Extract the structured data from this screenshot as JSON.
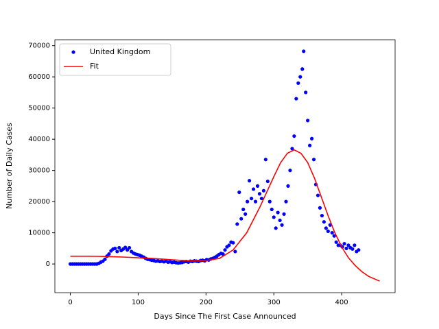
{
  "chart_data": {
    "type": "scatter-line",
    "xlabel": "Days Since The First Case Announced",
    "ylabel": "Number of Daily Cases",
    "xlim": [
      -22.8,
      478.8
    ],
    "ylim": [
      -9200,
      71900
    ],
    "xticks": [
      0,
      100,
      200,
      300,
      400
    ],
    "yticks": [
      0,
      10000,
      20000,
      30000,
      40000,
      50000,
      60000,
      70000
    ],
    "grid": false,
    "legend": "upper left",
    "series": [
      {
        "name": "United Kingdom",
        "kind": "scatter",
        "color": "#0000ff",
        "x": [
          0,
          3,
          6,
          9,
          12,
          15,
          18,
          21,
          24,
          27,
          30,
          33,
          36,
          39,
          42,
          45,
          48,
          51,
          54,
          57,
          60,
          63,
          66,
          69,
          72,
          75,
          78,
          81,
          84,
          87,
          90,
          93,
          96,
          99,
          102,
          105,
          108,
          111,
          114,
          117,
          120,
          123,
          126,
          129,
          132,
          135,
          138,
          141,
          144,
          147,
          150,
          153,
          156,
          159,
          162,
          165,
          168,
          171,
          174,
          177,
          180,
          183,
          186,
          189,
          192,
          195,
          198,
          201,
          204,
          207,
          210,
          213,
          216,
          219,
          222,
          225,
          228,
          231,
          234,
          237,
          240,
          243,
          246,
          249,
          252,
          255,
          258,
          261,
          264,
          267,
          270,
          273,
          276,
          279,
          282,
          285,
          288,
          291,
          294,
          297,
          300,
          303,
          306,
          309,
          312,
          315,
          318,
          321,
          324,
          327,
          330,
          333,
          336,
          339,
          342,
          344,
          347,
          350,
          353,
          356,
          359,
          362,
          365,
          368,
          371,
          374,
          377,
          380,
          383,
          386,
          389,
          392,
          395,
          398,
          401,
          404,
          407,
          410,
          413,
          416,
          419,
          422,
          425
        ],
        "values": [
          0,
          0,
          0,
          0,
          0,
          0,
          0,
          0,
          0,
          0,
          0,
          0,
          0,
          0,
          200,
          600,
          900,
          1500,
          2500,
          3200,
          4200,
          4800,
          5000,
          4000,
          5200,
          4300,
          4800,
          5300,
          4500,
          5200,
          4000,
          3500,
          3200,
          3000,
          2800,
          2500,
          2200,
          1800,
          1500,
          1400,
          1200,
          1100,
          900,
          1000,
          800,
          900,
          700,
          900,
          600,
          700,
          500,
          600,
          400,
          300,
          400,
          500,
          700,
          800,
          600,
          900,
          800,
          1000,
          900,
          800,
          1100,
          1200,
          1000,
          1400,
          1300,
          1600,
          1800,
          2100,
          2500,
          3000,
          3400,
          3200,
          4500,
          5500,
          6000,
          7000,
          6800,
          4000,
          12800,
          23000,
          14500,
          17500,
          16000,
          20000,
          26700,
          21000,
          24000,
          20000,
          25000,
          22500,
          21000,
          23500,
          33500,
          26500,
          20000,
          17500,
          15000,
          11500,
          16500,
          14000,
          12500,
          16000,
          20000,
          25000,
          30000,
          37000,
          41000,
          53000,
          58000,
          60000,
          62500,
          68200,
          55000,
          46000,
          38000,
          40200,
          33500,
          25500,
          22000,
          18000,
          15500,
          13500,
          11500,
          10500,
          12500,
          10000,
          9000,
          7000,
          6000,
          6000,
          5500,
          6500,
          5000,
          6000,
          5200,
          4800,
          6000,
          4000,
          4500
        ]
      },
      {
        "name": "Fit",
        "kind": "line",
        "color": "#ff0000",
        "x": [
          0,
          20,
          40,
          60,
          80,
          100,
          120,
          140,
          160,
          180,
          200,
          220,
          240,
          260,
          280,
          300,
          310,
          320,
          330,
          340,
          350,
          360,
          370,
          380,
          390,
          400,
          410,
          420,
          430,
          440,
          456
        ],
        "values": [
          2500,
          2500,
          2450,
          2350,
          2200,
          2000,
          1800,
          1500,
          1200,
          1000,
          1100,
          1800,
          4500,
          10000,
          18500,
          28000,
          32500,
          35500,
          36600,
          35500,
          32500,
          27500,
          21500,
          15500,
          10000,
          5500,
          2000,
          -500,
          -2500,
          -4000,
          -5500
        ]
      }
    ]
  }
}
